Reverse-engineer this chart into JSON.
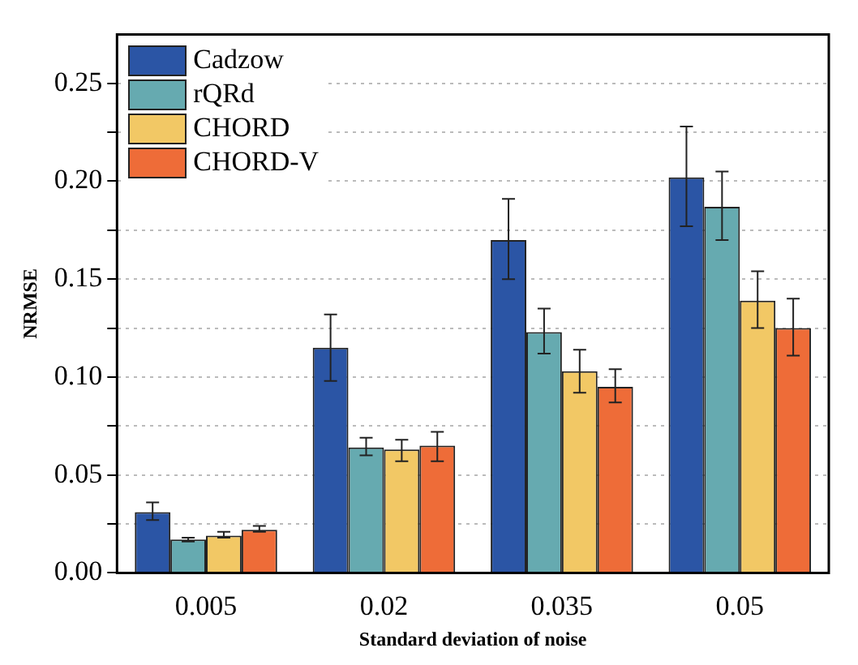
{
  "chart_data": {
    "type": "bar",
    "xlabel": "Standard deviation of noise",
    "ylabel": "NRMSE",
    "categories": [
      "0.005",
      "0.02",
      "0.035",
      "0.05"
    ],
    "series": [
      {
        "name": "Cadzow",
        "color": "#2b55a5",
        "values": [
          0.031,
          0.115,
          0.17,
          0.202
        ],
        "errors": [
          [
            0.027,
            0.036
          ],
          [
            0.098,
            0.132
          ],
          [
            0.15,
            0.191
          ],
          [
            0.177,
            0.228
          ]
        ]
      },
      {
        "name": "rQRd",
        "color": "#66aab0",
        "values": [
          0.017,
          0.064,
          0.123,
          0.187
        ],
        "errors": [
          [
            0.016,
            0.018
          ],
          [
            0.06,
            0.069
          ],
          [
            0.112,
            0.135
          ],
          [
            0.17,
            0.205
          ]
        ]
      },
      {
        "name": "CHORD",
        "color": "#f2c865",
        "values": [
          0.019,
          0.063,
          0.103,
          0.139
        ],
        "errors": [
          [
            0.018,
            0.021
          ],
          [
            0.057,
            0.068
          ],
          [
            0.092,
            0.114
          ],
          [
            0.125,
            0.154
          ]
        ]
      },
      {
        "name": "CHORD-V",
        "color": "#ee6c38",
        "values": [
          0.022,
          0.065,
          0.095,
          0.125
        ],
        "errors": [
          [
            0.021,
            0.024
          ],
          [
            0.057,
            0.072
          ],
          [
            0.087,
            0.104
          ],
          [
            0.111,
            0.14
          ]
        ]
      }
    ],
    "ylim": [
      0,
      0.275
    ],
    "yticks": [
      {
        "value": 0,
        "label": "0.00"
      },
      {
        "value": 0.025,
        "label": null
      },
      {
        "value": 0.05,
        "label": "0.05"
      },
      {
        "value": 0.075,
        "label": null
      },
      {
        "value": 0.1,
        "label": "0.10"
      },
      {
        "value": 0.125,
        "label": null
      },
      {
        "value": 0.15,
        "label": "0.15"
      },
      {
        "value": 0.175,
        "label": null
      },
      {
        "value": 0.2,
        "label": "0.20"
      },
      {
        "value": 0.225,
        "label": null
      },
      {
        "value": 0.25,
        "label": "0.25"
      }
    ],
    "grid": "y",
    "legend": "top left"
  }
}
